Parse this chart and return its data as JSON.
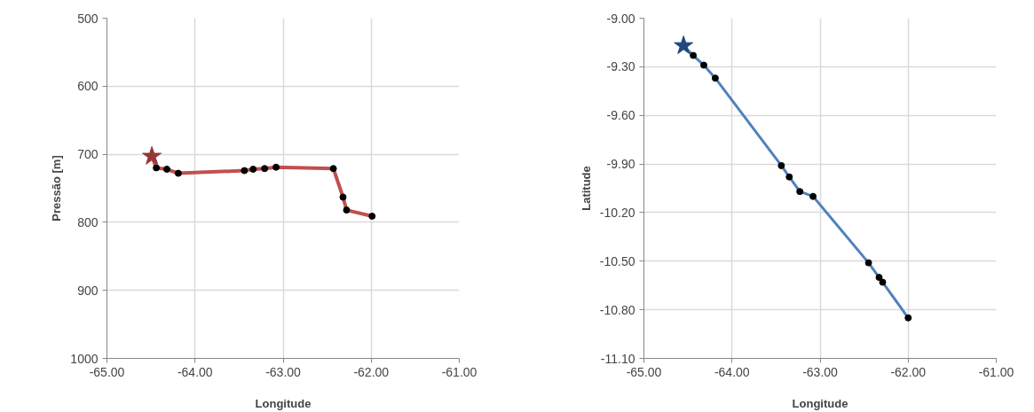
{
  "chart_data": [
    {
      "type": "line",
      "xlabel": "Longitude",
      "ylabel": "Pressão [m]",
      "xlim": [
        -65,
        -61
      ],
      "ylim": [
        1000,
        500
      ],
      "xticks": [
        {
          "value": -65,
          "label": "-65.00"
        },
        {
          "value": -64,
          "label": "-64.00"
        },
        {
          "value": -63,
          "label": "-63.00"
        },
        {
          "value": -62,
          "label": "-62.00"
        },
        {
          "value": -61,
          "label": "-61.00"
        }
      ],
      "yticks": [
        500,
        600,
        700,
        800,
        900,
        1000
      ],
      "grid": true,
      "series": [
        {
          "color": "#c0504d",
          "marker": "none",
          "x": [
            -64.49,
            -64.44,
            -64.32,
            -64.19,
            -63.44,
            -63.34,
            -63.21,
            -63.08,
            -62.43,
            -62.32,
            -62.28,
            -61.99
          ],
          "values": [
            703,
            720,
            722,
            728,
            724,
            722,
            721,
            719,
            721,
            763,
            782,
            791
          ]
        },
        {
          "type": "scatter",
          "color": "#000000",
          "marker": "circle",
          "x": [
            -64.44,
            -64.32,
            -64.19,
            -63.44,
            -63.34,
            -63.21,
            -63.08,
            -62.43,
            -62.32,
            -62.28,
            -61.99
          ],
          "values": [
            720,
            722,
            728,
            724,
            722,
            721,
            719,
            721,
            763,
            782,
            791
          ]
        },
        {
          "type": "scatter",
          "color": "#953735",
          "marker": "star",
          "x": [
            -64.49
          ],
          "values": [
            703
          ]
        }
      ]
    },
    {
      "type": "line",
      "xlabel": "Longitude",
      "ylabel": "Latitude",
      "xlim": [
        -65,
        -61
      ],
      "ylim": [
        -11.1,
        -9.0
      ],
      "xticks": [
        {
          "value": -65,
          "label": "-65.00"
        },
        {
          "value": -64,
          "label": "-64.00"
        },
        {
          "value": -63,
          "label": "-63.00"
        },
        {
          "value": -62,
          "label": "-62.00"
        },
        {
          "value": -61,
          "label": "-61.00"
        }
      ],
      "yticks": [
        {
          "value": -9.0,
          "label": "-9.00"
        },
        {
          "value": -9.3,
          "label": "-9.30"
        },
        {
          "value": -9.6,
          "label": "-9.60"
        },
        {
          "value": -9.9,
          "label": "-9.90"
        },
        {
          "value": -10.2,
          "label": "-10.20"
        },
        {
          "value": -10.5,
          "label": "-10.50"
        },
        {
          "value": -10.8,
          "label": "-10.80"
        },
        {
          "value": -11.1,
          "label": "-11.10"
        }
      ],
      "grid": true,
      "series": [
        {
          "color": "#4f81bd",
          "marker": "none",
          "x": [
            -64.55,
            -64.44,
            -64.32,
            -64.19,
            -63.44,
            -63.35,
            -63.23,
            -63.08,
            -62.45,
            -62.33,
            -62.29,
            -62.0
          ],
          "values": [
            -9.17,
            -9.23,
            -9.29,
            -9.37,
            -9.91,
            -9.98,
            -10.07,
            -10.1,
            -10.51,
            -10.6,
            -10.63,
            -10.85
          ]
        },
        {
          "type": "scatter",
          "color": "#000000",
          "marker": "circle",
          "x": [
            -64.44,
            -64.32,
            -64.19,
            -63.44,
            -63.35,
            -63.23,
            -63.08,
            -62.45,
            -62.33,
            -62.29,
            -62.0
          ],
          "values": [
            -9.23,
            -9.29,
            -9.37,
            -9.91,
            -9.98,
            -10.07,
            -10.1,
            -10.51,
            -10.6,
            -10.63,
            -10.85
          ]
        },
        {
          "type": "scatter",
          "color": "#1f497d",
          "marker": "star",
          "x": [
            -64.55
          ],
          "values": [
            -9.17
          ]
        }
      ]
    }
  ]
}
